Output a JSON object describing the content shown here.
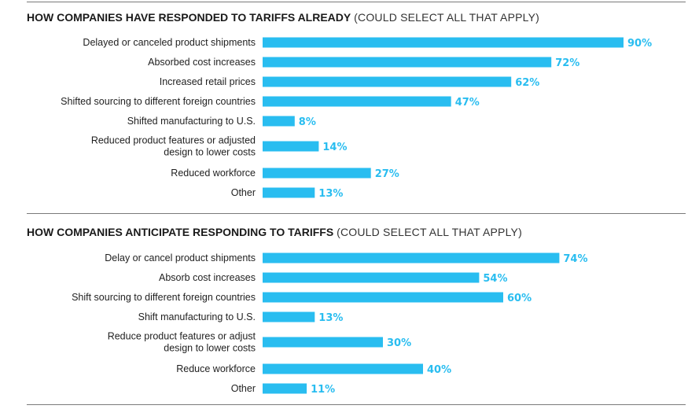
{
  "colors": {
    "bar": "#29BDF0",
    "value_text": "#29BDF0",
    "rule": "#7a7a7a"
  },
  "chart_data": [
    {
      "type": "bar",
      "orientation": "horizontal",
      "title": "HOW COMPANIES HAVE RESPONDED TO TARIFFS ALREADY",
      "subtitle": "(COULD SELECT ALL THAT APPLY)",
      "categories": [
        [
          "Delayed or canceled product shipments"
        ],
        [
          "Absorbed cost increases"
        ],
        [
          "Increased retail prices"
        ],
        [
          "Shifted sourcing to different foreign countries"
        ],
        [
          "Shifted manufacturing to U.S."
        ],
        [
          "Reduced product features or adjusted",
          "design to lower costs"
        ],
        [
          "Reduced workforce"
        ],
        [
          "Other"
        ]
      ],
      "values": [
        90,
        72,
        62,
        47,
        8,
        14,
        27,
        13
      ],
      "value_labels": [
        "90%",
        "72%",
        "62%",
        "47%",
        "8%",
        "14%",
        "27%",
        "13%"
      ],
      "xlim": [
        0,
        100
      ]
    },
    {
      "type": "bar",
      "orientation": "horizontal",
      "title": "HOW COMPANIES ANTICIPATE RESPONDING TO TARIFFS",
      "subtitle": "(COULD SELECT ALL THAT APPLY)",
      "categories": [
        [
          "Delay or cancel product shipments"
        ],
        [
          "Absorb cost increases"
        ],
        [
          "Shift sourcing to different foreign countries"
        ],
        [
          "Shift manufacturing to U.S."
        ],
        [
          "Reduce product features or adjust",
          "design to lower costs"
        ],
        [
          "Reduce workforce"
        ],
        [
          "Other"
        ]
      ],
      "values": [
        74,
        54,
        60,
        13,
        30,
        40,
        11
      ],
      "value_labels": [
        "74%",
        "54%",
        "60%",
        "13%",
        "30%",
        "40%",
        "11%"
      ],
      "xlim": [
        0,
        100
      ]
    }
  ]
}
